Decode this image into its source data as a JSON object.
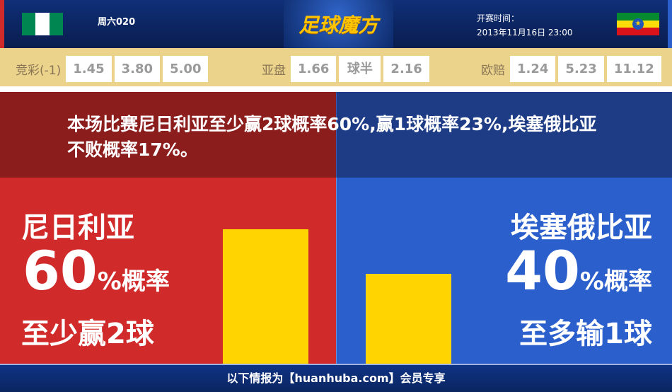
{
  "header": {
    "match_no": "周六020",
    "logo_text": "足球魔方",
    "kickoff_label": "开赛时间：",
    "kickoff_time": "2013年11月16日 23:00",
    "home_flag": "nigeria-flag",
    "away_flag": "ethiopia-flag"
  },
  "odds": {
    "jingcai": {
      "label": "竞彩(-1)",
      "values": [
        "1.45",
        "3.80",
        "5.00"
      ]
    },
    "yapan": {
      "label": "亚盘",
      "values": [
        "1.66",
        "球半",
        "2.16"
      ]
    },
    "oupei": {
      "label": "欧赔",
      "values": [
        "1.24",
        "5.23",
        "11.12"
      ]
    }
  },
  "headline": "本场比赛尼日利亚至少赢2球概率60%,赢1球概率23%,埃塞俄比亚不败概率17%。",
  "home": {
    "team": "尼日利亚",
    "percent": "60",
    "percent_suffix": "%概率",
    "outcome": "至少赢2球",
    "bar_value": 60
  },
  "away": {
    "team": "埃塞俄比亚",
    "percent": "40",
    "percent_suffix": "%概率",
    "outcome": "至多输1球",
    "bar_value": 40
  },
  "colors": {
    "home": "#d02a2a",
    "away": "#2a5fcc",
    "bar": "#ffd400"
  },
  "footer": "以下情报为【huanhuba.com】会员专享"
}
